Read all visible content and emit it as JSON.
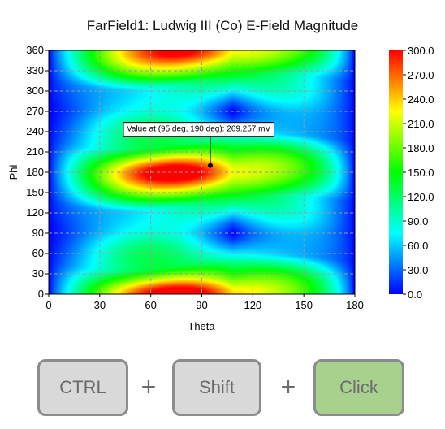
{
  "chart_data": {
    "type": "heatmap",
    "title": "FarField1: Ludwig III (Co) E-Field Magnitude",
    "xlabel": "Theta",
    "ylabel": "Phi",
    "xlim": [
      0,
      180
    ],
    "ylim": [
      0,
      360
    ],
    "xticks": [
      0,
      30,
      60,
      90,
      120,
      150,
      180
    ],
    "yticks": [
      0,
      30,
      60,
      90,
      120,
      150,
      180,
      210,
      240,
      270,
      300,
      330,
      360
    ],
    "colorbar": {
      "min": 0.0,
      "max": 300.0,
      "ticks": [
        "0.0",
        "30.0",
        "60.0",
        "90.0",
        "120.0",
        "150.0",
        "180.0",
        "210.0",
        "240.0",
        "270.0",
        "300.0"
      ]
    },
    "grid": true,
    "annotation": {
      "text": "Value at (95 deg, 190 deg): 269.257 mV",
      "theta": 95,
      "phi": 190,
      "value": 269.257
    },
    "hotspots": [
      {
        "theta": 72,
        "phi": 180,
        "value": 290
      },
      {
        "theta": 80,
        "phi": 0,
        "value": 290
      },
      {
        "theta": 80,
        "phi": 360,
        "value": 250
      }
    ]
  },
  "shortcut": {
    "keys": [
      "CTRL",
      "Shift",
      "Click"
    ],
    "separator": "+"
  }
}
